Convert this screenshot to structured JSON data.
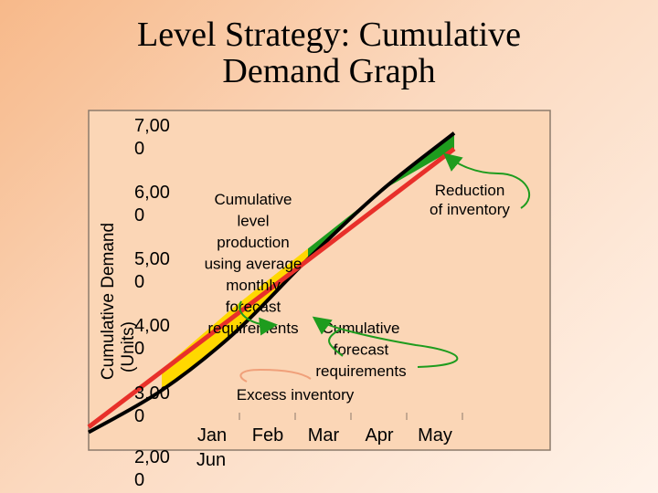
{
  "slide": {
    "title_line1": "Level Strategy: Cumulative",
    "title_line2": "Demand Graph"
  },
  "chart_data": {
    "type": "line",
    "ylabel_line1": "Cumulative Demand",
    "ylabel_line2": "(Units)",
    "y_ticks": [
      {
        "value": 7000,
        "line1": "7,00",
        "line2": "0"
      },
      {
        "value": 6000,
        "line1": "6,00",
        "line2": "0"
      },
      {
        "value": 5000,
        "line1": "5,00",
        "line2": "0"
      },
      {
        "value": 4000,
        "line1": "4,00",
        "line2": "0"
      },
      {
        "value": 3000,
        "line1": "3,00",
        "line2": "0"
      },
      {
        "value": 2000,
        "line1": "2,00",
        "line2": "0"
      }
    ],
    "categories": [
      "Jan",
      "Feb",
      "Mar",
      "Apr",
      "May",
      "Jun"
    ],
    "series": [
      {
        "key": "forecast",
        "color": "#000000",
        "values": [
          1000,
          1800,
          2900,
          4300,
          5600,
          6700
        ]
      },
      {
        "key": "level",
        "color": "#e8302a",
        "values": [
          1100,
          2200,
          3400,
          4500,
          5600,
          6400
        ]
      }
    ],
    "fills": {
      "excess": "#ffd800",
      "reduction": "#1e9c1e"
    },
    "annotations": {
      "level_lines": [
        "Cumulative",
        "level",
        "production",
        "using average",
        "monthly",
        "forecast",
        "requirements"
      ],
      "forecast_lines": [
        "Cumulative",
        "forecast",
        "requirements"
      ],
      "excess": "Excess inventory",
      "reduction_lines": [
        "Reduction",
        "of inventory"
      ]
    },
    "arrow_color": "#1e9c1e",
    "excess_arrow_color": "#f0a07a"
  }
}
